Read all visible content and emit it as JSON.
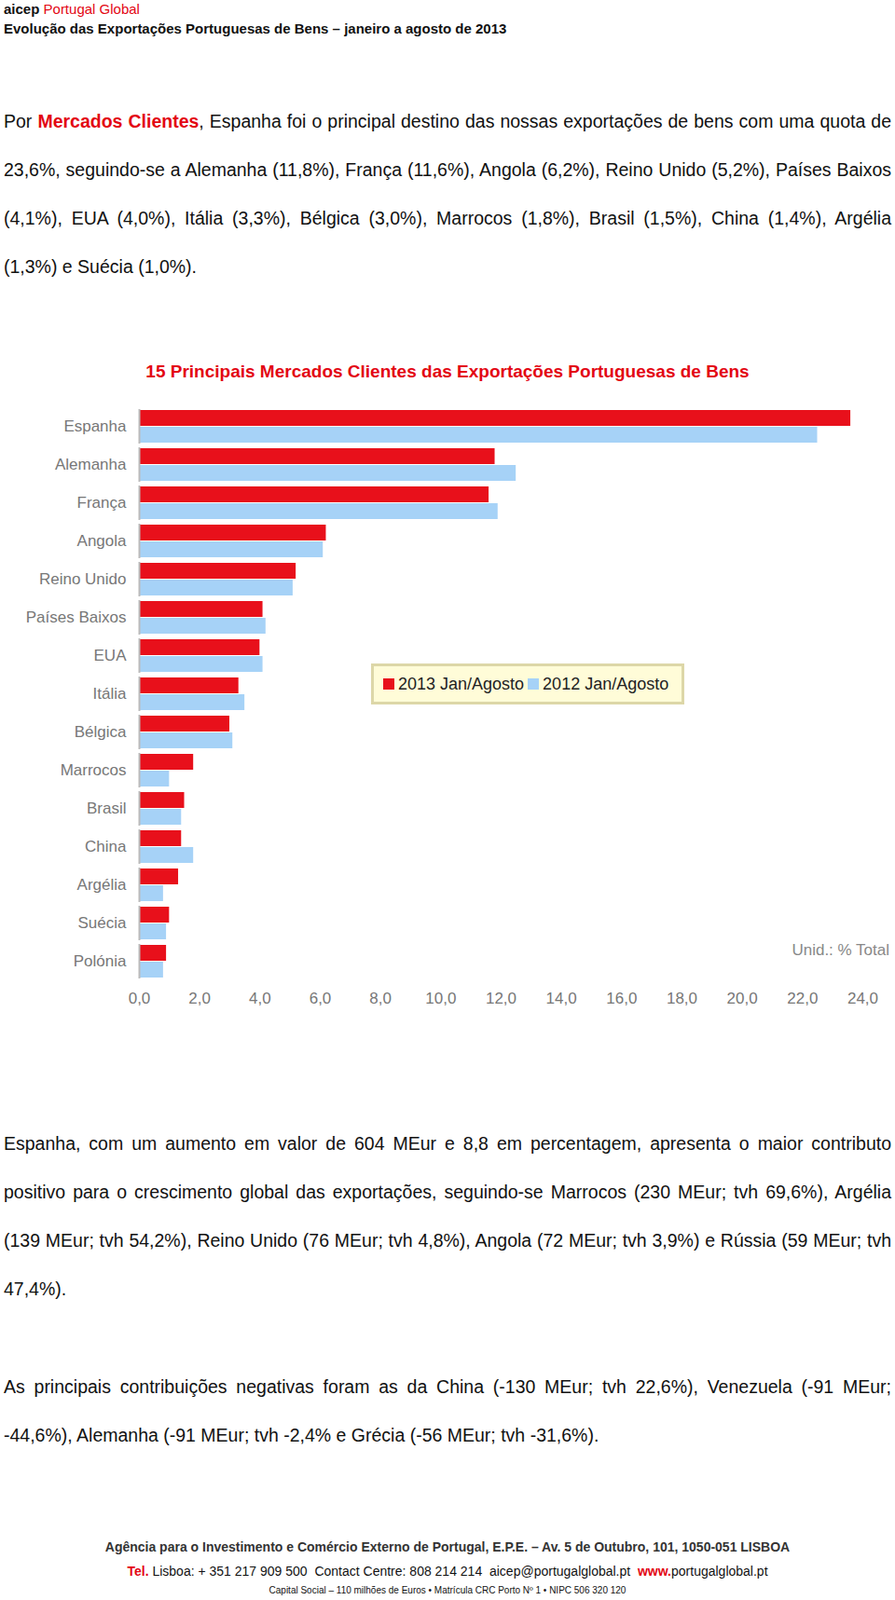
{
  "header": {
    "brand": [
      "aicep",
      "Portugal Global"
    ],
    "title": "Evolução das Exportações Portuguesas de Bens – janeiro a agosto de 2013"
  },
  "paragraphs": [
    {
      "prefix": "Por ",
      "emphasis": "Mercados Clientes",
      "text": ", Espanha foi o principal destino das nossas exportações de bens com uma quota de 23,6%, seguindo-se a Alemanha (11,8%), França (11,6%), Angola (6,2%), Reino Unido (5,2%), Países Baixos (4,1%), EUA (4,0%), Itália (3,3%), Bélgica (3,0%), Marrocos (1,8%), Brasil (1,5%), China (1,4%), Argélia (1,3%) e Suécia (1,0%)."
    },
    {
      "text": "Espanha, com um aumento em valor de 604 MEur e 8,8 em percentagem, apresenta o maior contributo positivo para o crescimento global das exportações, seguindo-se Marrocos (230 MEur; tvh 69,6%), Argélia (139 MEur; tvh 54,2%), Reino Unido (76 MEur; tvh 4,8%), Angola (72 MEur; tvh 3,9%) e Rússia (59 MEur; tvh 47,4%)."
    },
    {
      "text": "As principais contribuições negativas foram as da China (-130 MEur; tvh 22,6%), Venezuela (-91 MEur; -44,6%), Alemanha (-91 MEur; tvh -2,4% e Grécia (-56 MEur; tvh -31,6%)."
    }
  ],
  "chart_data": {
    "type": "bar",
    "orientation": "horizontal",
    "title": "15 Principais Mercados Clientes das Exportações Portuguesas de Bens",
    "annotation": "Unid.: % Total",
    "categories": [
      "Espanha",
      "Alemanha",
      "França",
      "Angola",
      "Reino Unido",
      "Países Baixos",
      "EUA",
      "Itália",
      "Bélgica",
      "Marrocos",
      "Brasil",
      "China",
      "Argélia",
      "Suécia",
      "Polónia"
    ],
    "series": [
      {
        "name": "2013 Jan/Agosto",
        "color": "#e8101b",
        "values": [
          23.6,
          11.8,
          11.6,
          6.2,
          5.2,
          4.1,
          4.0,
          3.3,
          3.0,
          1.8,
          1.5,
          1.4,
          1.3,
          1.0,
          0.9
        ]
      },
      {
        "name": "2012 Jan/Agosto",
        "color": "#a6d2f7",
        "values": [
          22.5,
          12.5,
          11.9,
          6.1,
          5.1,
          4.2,
          4.1,
          3.5,
          3.1,
          1.0,
          1.4,
          1.8,
          0.8,
          0.9,
          0.8
        ]
      }
    ],
    "xlim": [
      0,
      24
    ],
    "xticks": [
      {
        "value": 0,
        "label": "0,0"
      },
      {
        "value": 2,
        "label": "2,0"
      },
      {
        "value": 4,
        "label": "4,0"
      },
      {
        "value": 6,
        "label": "6,0"
      },
      {
        "value": 8,
        "label": "8,0"
      },
      {
        "value": 10,
        "label": "10,0"
      },
      {
        "value": 12,
        "label": "12,0"
      },
      {
        "value": 14,
        "label": "14,0"
      },
      {
        "value": 16,
        "label": "16,0"
      },
      {
        "value": 18,
        "label": "18,0"
      },
      {
        "value": 20,
        "label": "20,0"
      },
      {
        "value": 22,
        "label": "22,0"
      },
      {
        "value": 24,
        "label": "24,0"
      }
    ],
    "grid": false,
    "legend": "center"
  },
  "footer": {
    "address": "Agência para o Investimento e Comércio Externo de Portugal, E.P.E. – Av. 5 de Outubro, 101, 1050-051 LISBOA",
    "contact": [
      {
        "text": "Tel.",
        "red": true
      },
      {
        "text": " Lisboa: + 351 217 909 500  Contact Centre: 808 214 214  aicep@portugalglobal.pt  ",
        "red": false
      },
      {
        "text": "www.",
        "red": true
      },
      {
        "text": "portugalglobal.pt",
        "red": false
      }
    ],
    "legal": "Capital Social – 110 milhões de Euros • Matrícula CRC Porto Nº 1 • NIPC 506 320 120"
  }
}
